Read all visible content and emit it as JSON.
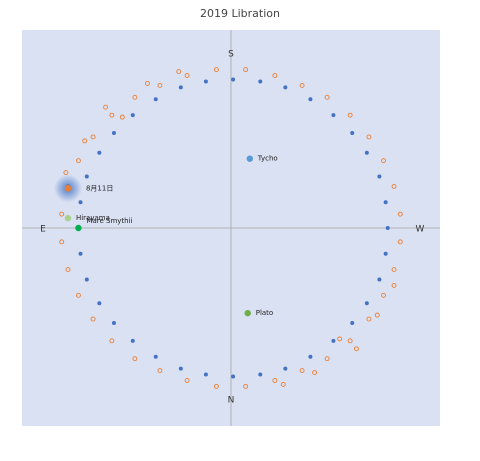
{
  "chart_data": {
    "type": "scatter",
    "title": "2019 Libration",
    "xlim": [
      -10,
      10
    ],
    "ylim": [
      -10,
      10
    ],
    "directions": {
      "top": "S",
      "bottom": "N",
      "left": "E",
      "right": "W"
    },
    "series": [
      {
        "color": "#4472c4",
        "filled": true,
        "x": [
          7.5,
          7.4,
          7.1,
          6.5,
          5.8,
          4.9,
          3.8,
          2.6,
          1.4,
          0.1,
          -1.2,
          -2.4,
          -3.6,
          -4.7,
          -5.6,
          -6.3,
          -6.9,
          -7.2,
          -7.3,
          -7.2,
          -6.9,
          -6.3,
          -5.6,
          -4.7,
          -3.6,
          -2.4,
          -1.2,
          0.1,
          1.4,
          2.6,
          3.8,
          4.9,
          5.8,
          6.5,
          7.1,
          7.4
        ],
        "y": [
          0,
          1.3,
          2.6,
          3.8,
          4.8,
          5.7,
          6.5,
          7.1,
          7.4,
          7.5,
          7.4,
          7.1,
          6.5,
          5.7,
          4.8,
          3.8,
          2.6,
          1.3,
          0,
          -1.3,
          -2.6,
          -3.8,
          -4.8,
          -5.7,
          -6.5,
          -7.1,
          -7.4,
          -7.5,
          -7.4,
          -7.1,
          -6.5,
          -5.7,
          -4.8,
          -3.8,
          -2.6,
          -1.3
        ]
      },
      {
        "color": "#ed7d31",
        "filled": false,
        "x": [
          8.1,
          7.8,
          7.3,
          6.6,
          5.7,
          4.6,
          3.4,
          2.1,
          0.7,
          -0.7,
          -2.1,
          -3.4,
          -4.6,
          -5.7,
          -6.6,
          -7.3,
          -7.8,
          -8.1,
          -8.1,
          -7.8,
          -7.3,
          -6.6,
          -5.7,
          -4.6,
          -3.4,
          -2.1,
          -0.7,
          0.7,
          2.1,
          3.4,
          4.6,
          5.7,
          6.6,
          7.3,
          7.8,
          8.1,
          -6.0,
          -4.0,
          -7.0,
          -7.9,
          -2.5,
          -5.2,
          6.0,
          4.0,
          7.0,
          2.5,
          5.2,
          7.8
        ],
        "y": [
          0.7,
          2.1,
          3.4,
          4.6,
          5.7,
          6.6,
          7.2,
          7.7,
          8.0,
          8.0,
          7.7,
          7.2,
          6.6,
          5.7,
          4.6,
          3.4,
          2.1,
          0.7,
          -0.7,
          -2.1,
          -3.4,
          -4.6,
          -5.7,
          -6.6,
          -7.2,
          -7.7,
          -8.0,
          -8.0,
          -7.7,
          -7.2,
          -6.6,
          -5.7,
          -4.6,
          -3.4,
          -2.1,
          -0.7,
          6.1,
          7.3,
          4.4,
          2.8,
          7.9,
          5.6,
          -6.1,
          -7.3,
          -4.4,
          -7.9,
          -5.6,
          -2.9
        ]
      }
    ],
    "points": [
      {
        "label": "Tycho",
        "x": 0.9,
        "y": 3.5,
        "color": "#5b9bd5"
      },
      {
        "label": "Plato",
        "x": 0.8,
        "y": -4.3,
        "color": "#70ad47"
      },
      {
        "label": "Hirayama",
        "x": -7.8,
        "y": 0.5,
        "color": "#a9d18e"
      },
      {
        "label": "Mare Smythii",
        "x": -7.3,
        "y": 0,
        "color": "#00b050"
      },
      {
        "label": "8月11日",
        "x": -7.8,
        "y": 2.0,
        "color": "#ed7d31",
        "highlight": true
      }
    ]
  }
}
